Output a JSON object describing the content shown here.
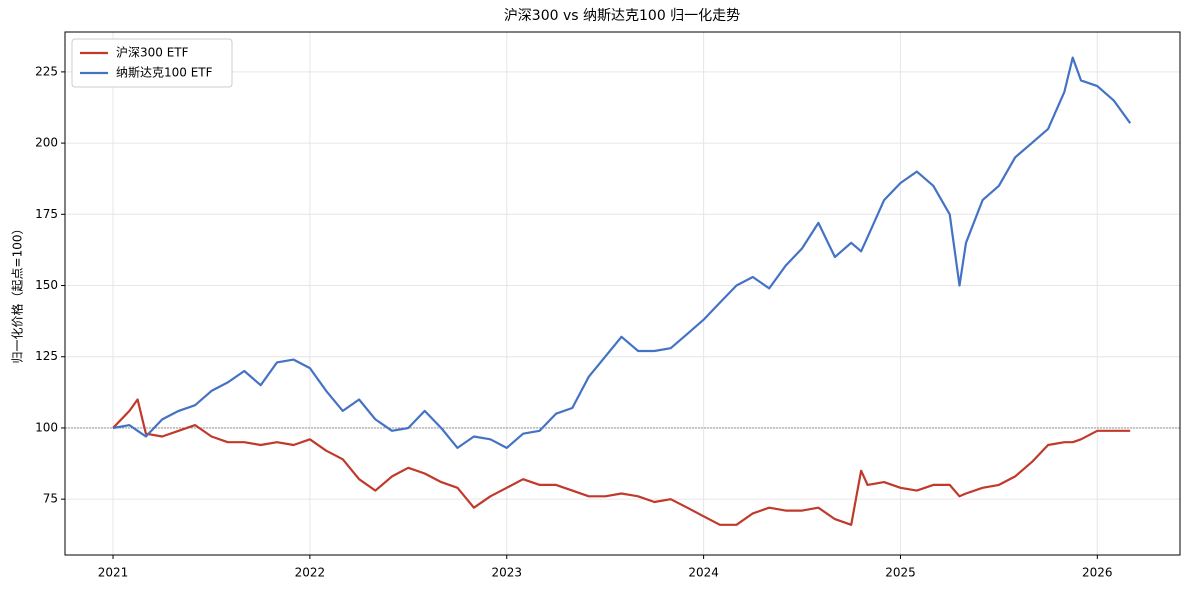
{
  "chart_data": {
    "type": "line",
    "title": "沪深300 vs 纳斯达克100 归一化走势",
    "ylabel": "归一化价格（起点=100）",
    "x": [
      2021.0,
      2021.083,
      2021.125,
      2021.167,
      2021.25,
      2021.333,
      2021.417,
      2021.5,
      2021.583,
      2021.667,
      2021.75,
      2021.833,
      2021.917,
      2022.0,
      2022.083,
      2022.167,
      2022.25,
      2022.333,
      2022.417,
      2022.5,
      2022.583,
      2022.667,
      2022.75,
      2022.833,
      2022.917,
      2023.0,
      2023.083,
      2023.167,
      2023.25,
      2023.333,
      2023.417,
      2023.5,
      2023.583,
      2023.667,
      2023.75,
      2023.833,
      2023.917,
      2024.0,
      2024.083,
      2024.167,
      2024.25,
      2024.333,
      2024.417,
      2024.5,
      2024.583,
      2024.667,
      2024.75,
      2024.8,
      2024.833,
      2024.917,
      2025.0,
      2025.083,
      2025.167,
      2025.25,
      2025.3,
      2025.333,
      2025.417,
      2025.5,
      2025.583,
      2025.667,
      2025.75,
      2025.833,
      2025.875,
      2025.917,
      2026.0,
      2026.083,
      2026.167
    ],
    "series": [
      {
        "name": "沪深300 ETF",
        "color": "#c0392b",
        "values": [
          100,
          106,
          110,
          98,
          97,
          99,
          101,
          97,
          95,
          95,
          94,
          95,
          94,
          96,
          92,
          89,
          82,
          78,
          83,
          86,
          84,
          81,
          79,
          72,
          76,
          79,
          82,
          80,
          80,
          78,
          76,
          76,
          77,
          76,
          74,
          75,
          72,
          69,
          66,
          66,
          70,
          72,
          71,
          71,
          72,
          68,
          66,
          85,
          80,
          81,
          79,
          78,
          80,
          80,
          76,
          77,
          79,
          80,
          83,
          88,
          94,
          95,
          95,
          96,
          99,
          99,
          99
        ]
      },
      {
        "name": "纳斯达克100 ETF",
        "color": "#4472c4",
        "values": [
          100,
          101,
          99,
          97,
          103,
          106,
          108,
          113,
          116,
          120,
          115,
          123,
          124,
          121,
          113,
          106,
          110,
          103,
          99,
          100,
          106,
          100,
          93,
          97,
          96,
          93,
          98,
          99,
          105,
          107,
          118,
          125,
          132,
          127,
          127,
          128,
          133,
          138,
          144,
          150,
          153,
          149,
          157,
          163,
          172,
          160,
          165,
          162,
          167,
          180,
          186,
          190,
          185,
          175,
          150,
          165,
          180,
          185,
          195,
          200,
          205,
          218,
          230,
          222,
          220,
          215,
          207
        ]
      }
    ],
    "reference_line": 100,
    "xlim": [
      2020.756,
      2026.42
    ],
    "xticks": [
      2021,
      2022,
      2023,
      2024,
      2025,
      2026
    ],
    "ylim": [
      55.4,
      239
    ],
    "yticks": [
      75,
      100,
      125,
      150,
      175,
      200,
      225
    ],
    "grid": true,
    "legend": "upper left"
  }
}
